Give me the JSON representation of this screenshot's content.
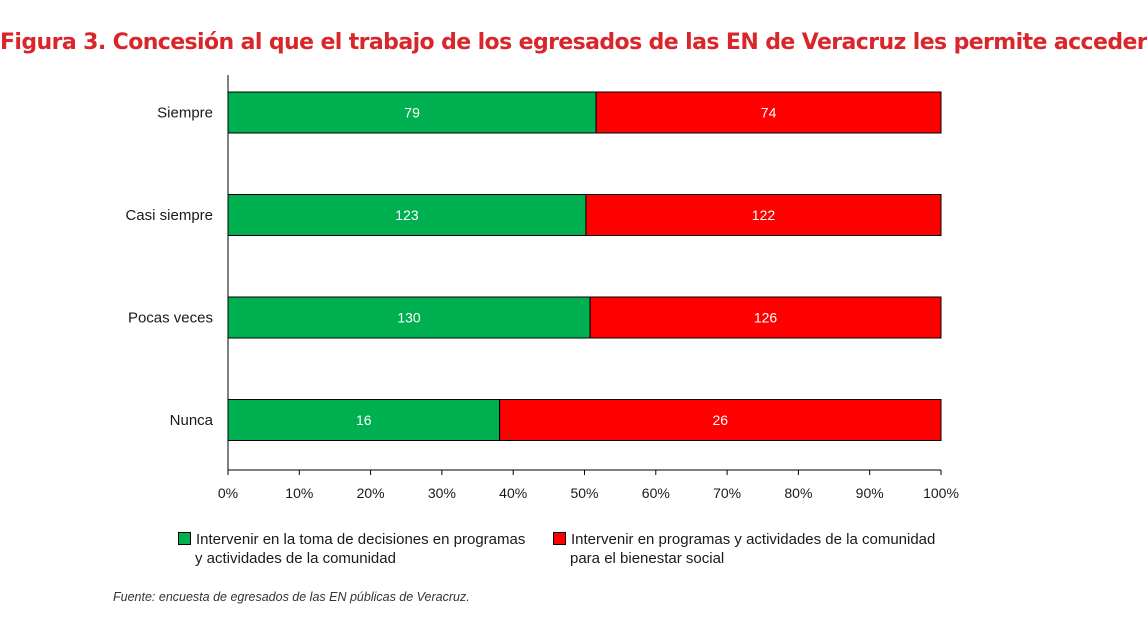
{
  "title": "Figura 3. Concesión al que el trabajo de los egresados de las EN de Veracruz les permite acceder",
  "source": "Fuente: encuesta de egresados de las EN públicas de Veracruz.",
  "colors": {
    "green": "#00b050",
    "red": "#ff0000",
    "title": "#d9262b"
  },
  "chart_data": {
    "type": "bar",
    "orientation": "horizontal",
    "stacked": "percent",
    "categories": [
      "Siempre",
      "Casi siempre",
      "Pocas veces",
      "Nunca"
    ],
    "series": [
      {
        "name": "Intervenir en la toma de decisiones en programas y actividades de la comunidad",
        "legend_line1": "Intervenir en la toma de decisiones en programas",
        "legend_line2": "y actividades de la comunidad",
        "color": "#00b050",
        "values": [
          79,
          123,
          130,
          16
        ]
      },
      {
        "name": "Intervenir en programas y actividades de la comunidad para el bienestar social",
        "legend_line1": "Intervenir en programas y actividades de la comunidad",
        "legend_line2": "para el bienestar social",
        "color": "#ff0000",
        "values": [
          74,
          122,
          126,
          26
        ]
      }
    ],
    "xticks": [
      "0%",
      "10%",
      "20%",
      "30%",
      "40%",
      "50%",
      "60%",
      "70%",
      "80%",
      "90%",
      "100%"
    ],
    "xlim": [
      0,
      100
    ],
    "grid": false,
    "legend": "bottom"
  }
}
